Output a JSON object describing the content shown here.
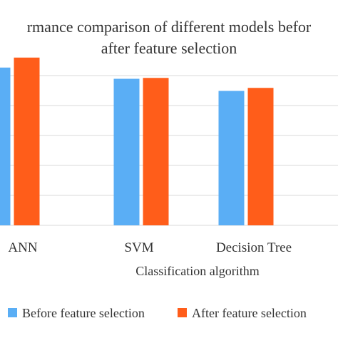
{
  "chart_data": {
    "type": "bar",
    "title_lines": [
      "rmance comparison of different models befor",
      "after feature selection"
    ],
    "categories": [
      "ANN",
      "SVM",
      "Decision Tree"
    ],
    "xlabel": "Classification algorithm",
    "ylabel": "",
    "ylim": [
      0,
      1
    ],
    "grid": true,
    "legend_position": "bottom",
    "series": [
      {
        "name": "Before feature selection",
        "color": "#5aaef5",
        "values": [
          0.885,
          0.822,
          0.754
        ]
      },
      {
        "name": "After feature selection",
        "color": "#ff5d1a",
        "values": [
          0.941,
          0.827,
          0.771
        ]
      }
    ]
  }
}
